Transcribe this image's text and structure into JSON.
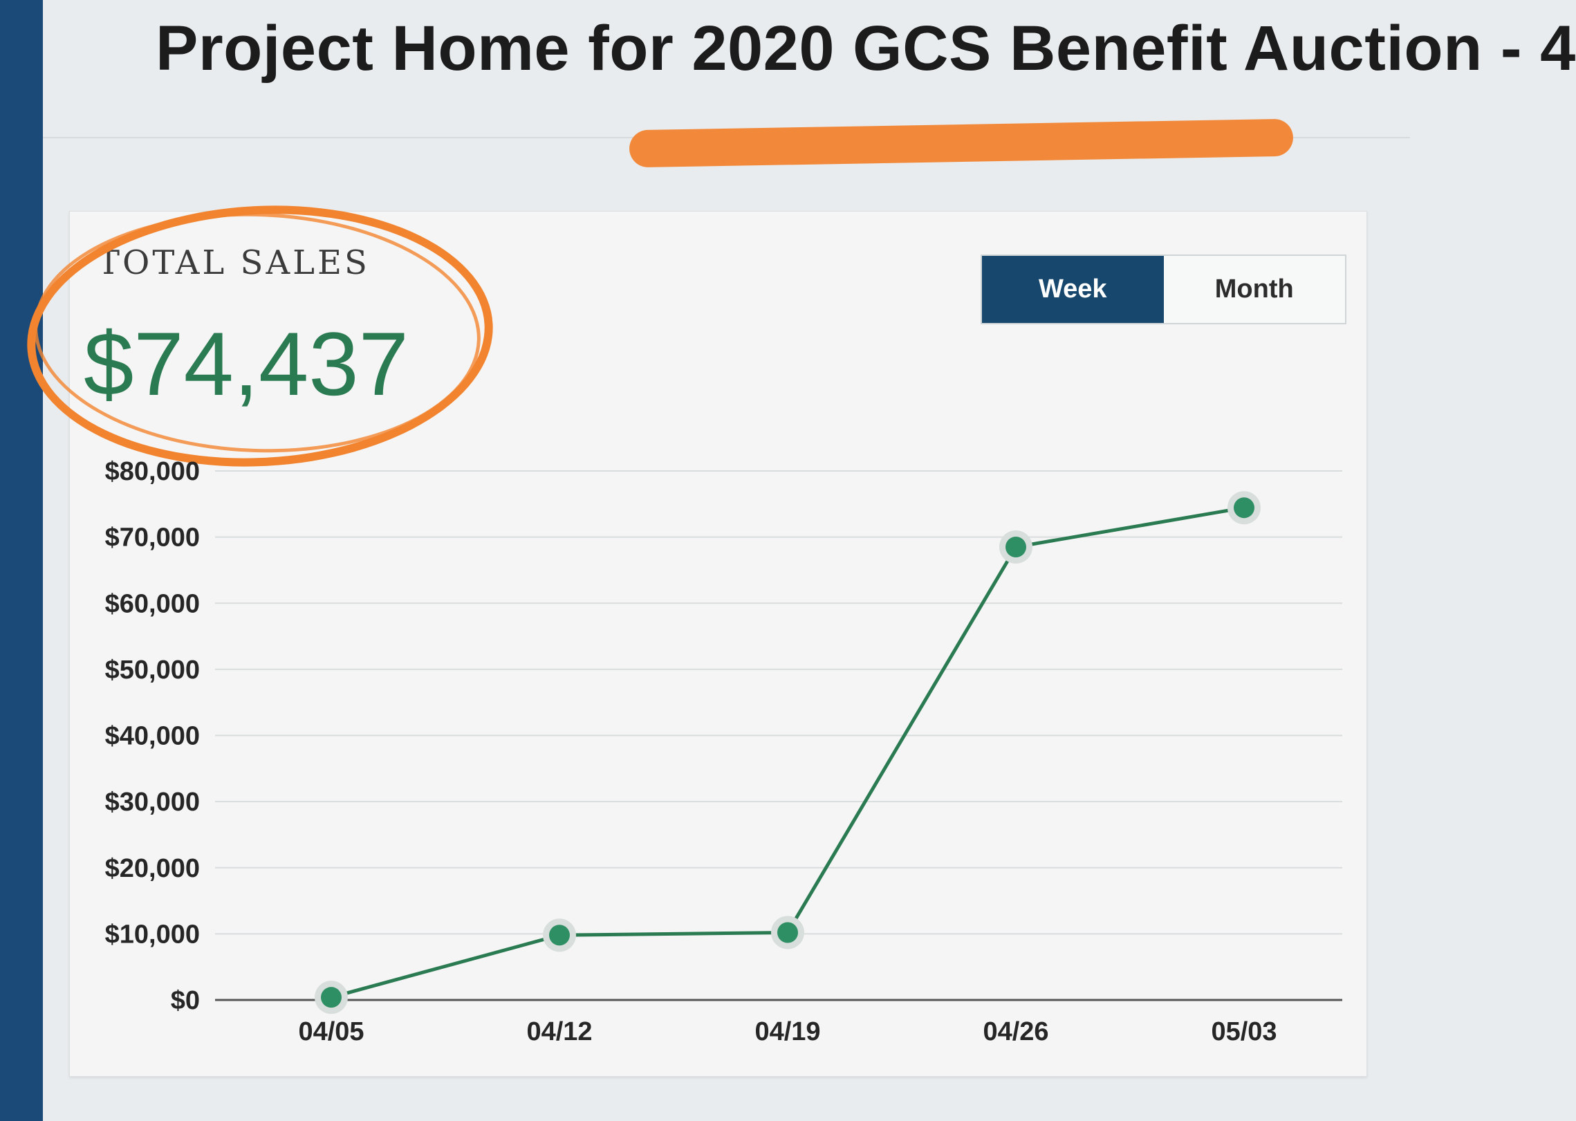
{
  "page": {
    "title": "Project Home for 2020 GCS Benefit Auction - 4"
  },
  "summary": {
    "label": "TOTAL SALES",
    "value": "$74,437"
  },
  "toggle": {
    "week_label": "Week",
    "month_label": "Month",
    "selected": "Week"
  },
  "colors": {
    "line": "#2a7a52",
    "point": "#2f8f64",
    "active_button": "#17476d",
    "highlight": "#f2842f"
  },
  "chart_data": {
    "type": "line",
    "title": "",
    "xlabel": "",
    "ylabel": "",
    "categories": [
      "04/05",
      "04/12",
      "04/19",
      "04/26",
      "05/03"
    ],
    "series": [
      {
        "values": [
          400,
          9800,
          10200,
          68500,
          74437
        ]
      }
    ],
    "ylim": [
      0,
      80000
    ],
    "yticks": [
      0,
      10000,
      20000,
      30000,
      40000,
      50000,
      60000,
      70000,
      80000
    ],
    "ytick_labels": [
      "$0",
      "$10,000",
      "$20,000",
      "$30,000",
      "$40,000",
      "$50,000",
      "$60,000",
      "$70,000",
      "$80,000"
    ],
    "grid": true,
    "legend": "none"
  }
}
